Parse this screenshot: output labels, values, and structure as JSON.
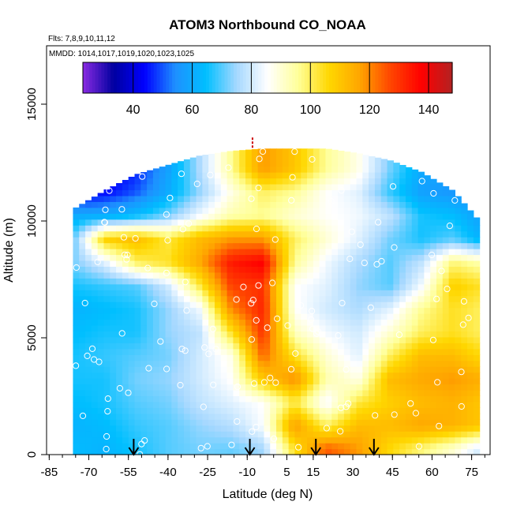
{
  "chart_data": {
    "type": "heatmap",
    "title": "ATOM3 Northbound CO_NOAA",
    "flights_note": "Flts: 7,8,9,10,11,12",
    "mmdd_note": "MMDD: 1014,1017,1019,1020,1023,1025",
    "xlabel": "Latitude (deg N)",
    "ylabel": "Altitude (m)",
    "xlim": [
      -86,
      82
    ],
    "ylim": [
      0,
      17500
    ],
    "x_ticks": [
      -85,
      -70,
      -55,
      -40,
      -25,
      -10,
      5,
      15,
      30,
      45,
      60,
      75
    ],
    "y_ticks": [
      0,
      5000,
      10000,
      15000
    ],
    "colorbar": {
      "range": [
        23,
        148
      ],
      "ticks": [
        40,
        60,
        80,
        100,
        120,
        140
      ],
      "colors": [
        "#8a2be2",
        "#0000a0",
        "#0000ff",
        "#1e90ff",
        "#00bfff",
        "#a6d8ff",
        "#ffffff",
        "#ffff99",
        "#ffd700",
        "#ffa500",
        "#ff4500",
        "#ff0000",
        "#b22222"
      ]
    },
    "lat_grid": [
      -76,
      -64,
      -52,
      -40,
      -28,
      -16,
      -4,
      8,
      20,
      32,
      44,
      56,
      68,
      78
    ],
    "alt_grid": [
      250,
      1250,
      2250,
      3250,
      4250,
      5250,
      6250,
      7250,
      8250,
      9250,
      10250,
      11250,
      12250
    ],
    "alt_extent": [
      [
        0,
        10500
      ],
      [
        0,
        11300
      ],
      [
        0,
        12000
      ],
      [
        0,
        12400
      ],
      [
        0,
        12800
      ],
      [
        0,
        13000
      ],
      [
        0,
        13100
      ],
      [
        0,
        13100
      ],
      [
        0,
        13100
      ],
      [
        0,
        12900
      ],
      [
        0,
        12600
      ],
      [
        0,
        12100
      ],
      [
        0,
        11300
      ],
      [
        0,
        10000
      ]
    ],
    "co_values": [
      [
        64,
        62,
        66,
        70,
        72,
        71,
        75,
        104,
        125,
        118,
        106,
        98,
        90,
        80
      ],
      [
        62,
        64,
        68,
        70,
        74,
        77,
        85,
        118,
        100,
        112,
        112,
        116,
        114,
        110
      ],
      [
        64,
        66,
        70,
        72,
        78,
        82,
        86,
        102,
        84,
        102,
        108,
        112,
        114,
        110
      ],
      [
        66,
        66,
        72,
        74,
        80,
        86,
        110,
        120,
        94,
        88,
        112,
        116,
        118,
        115
      ],
      [
        66,
        68,
        70,
        72,
        80,
        88,
        124,
        104,
        90,
        82,
        100,
        112,
        112,
        106
      ],
      [
        64,
        66,
        66,
        74,
        78,
        104,
        130,
        92,
        84,
        80,
        90,
        100,
        104,
        100
      ],
      [
        62,
        64,
        66,
        74,
        84,
        120,
        132,
        86,
        80,
        76,
        82,
        96,
        104,
        100
      ],
      [
        66,
        68,
        70,
        80,
        102,
        128,
        130,
        86,
        82,
        74,
        70,
        84,
        108,
        104
      ],
      [
        72,
        82,
        100,
        104,
        116,
        134,
        138,
        96,
        84,
        76,
        70,
        78,
        98,
        94
      ],
      [
        70,
        108,
        112,
        102,
        112,
        118,
        118,
        100,
        90,
        82,
        72,
        66,
        70,
        62
      ],
      [
        60,
        60,
        64,
        72,
        84,
        94,
        96,
        90,
        86,
        84,
        78,
        66,
        64,
        58
      ],
      [
        40,
        44,
        50,
        60,
        74,
        88,
        100,
        96,
        86,
        82,
        68,
        58,
        56,
        54
      ],
      [
        38,
        40,
        46,
        58,
        76,
        96,
        118,
        110,
        96,
        88,
        72,
        60,
        58,
        56
      ]
    ],
    "arrows_lat": [
      -53,
      -9,
      16,
      38
    ],
    "marker_lat": -8
  }
}
